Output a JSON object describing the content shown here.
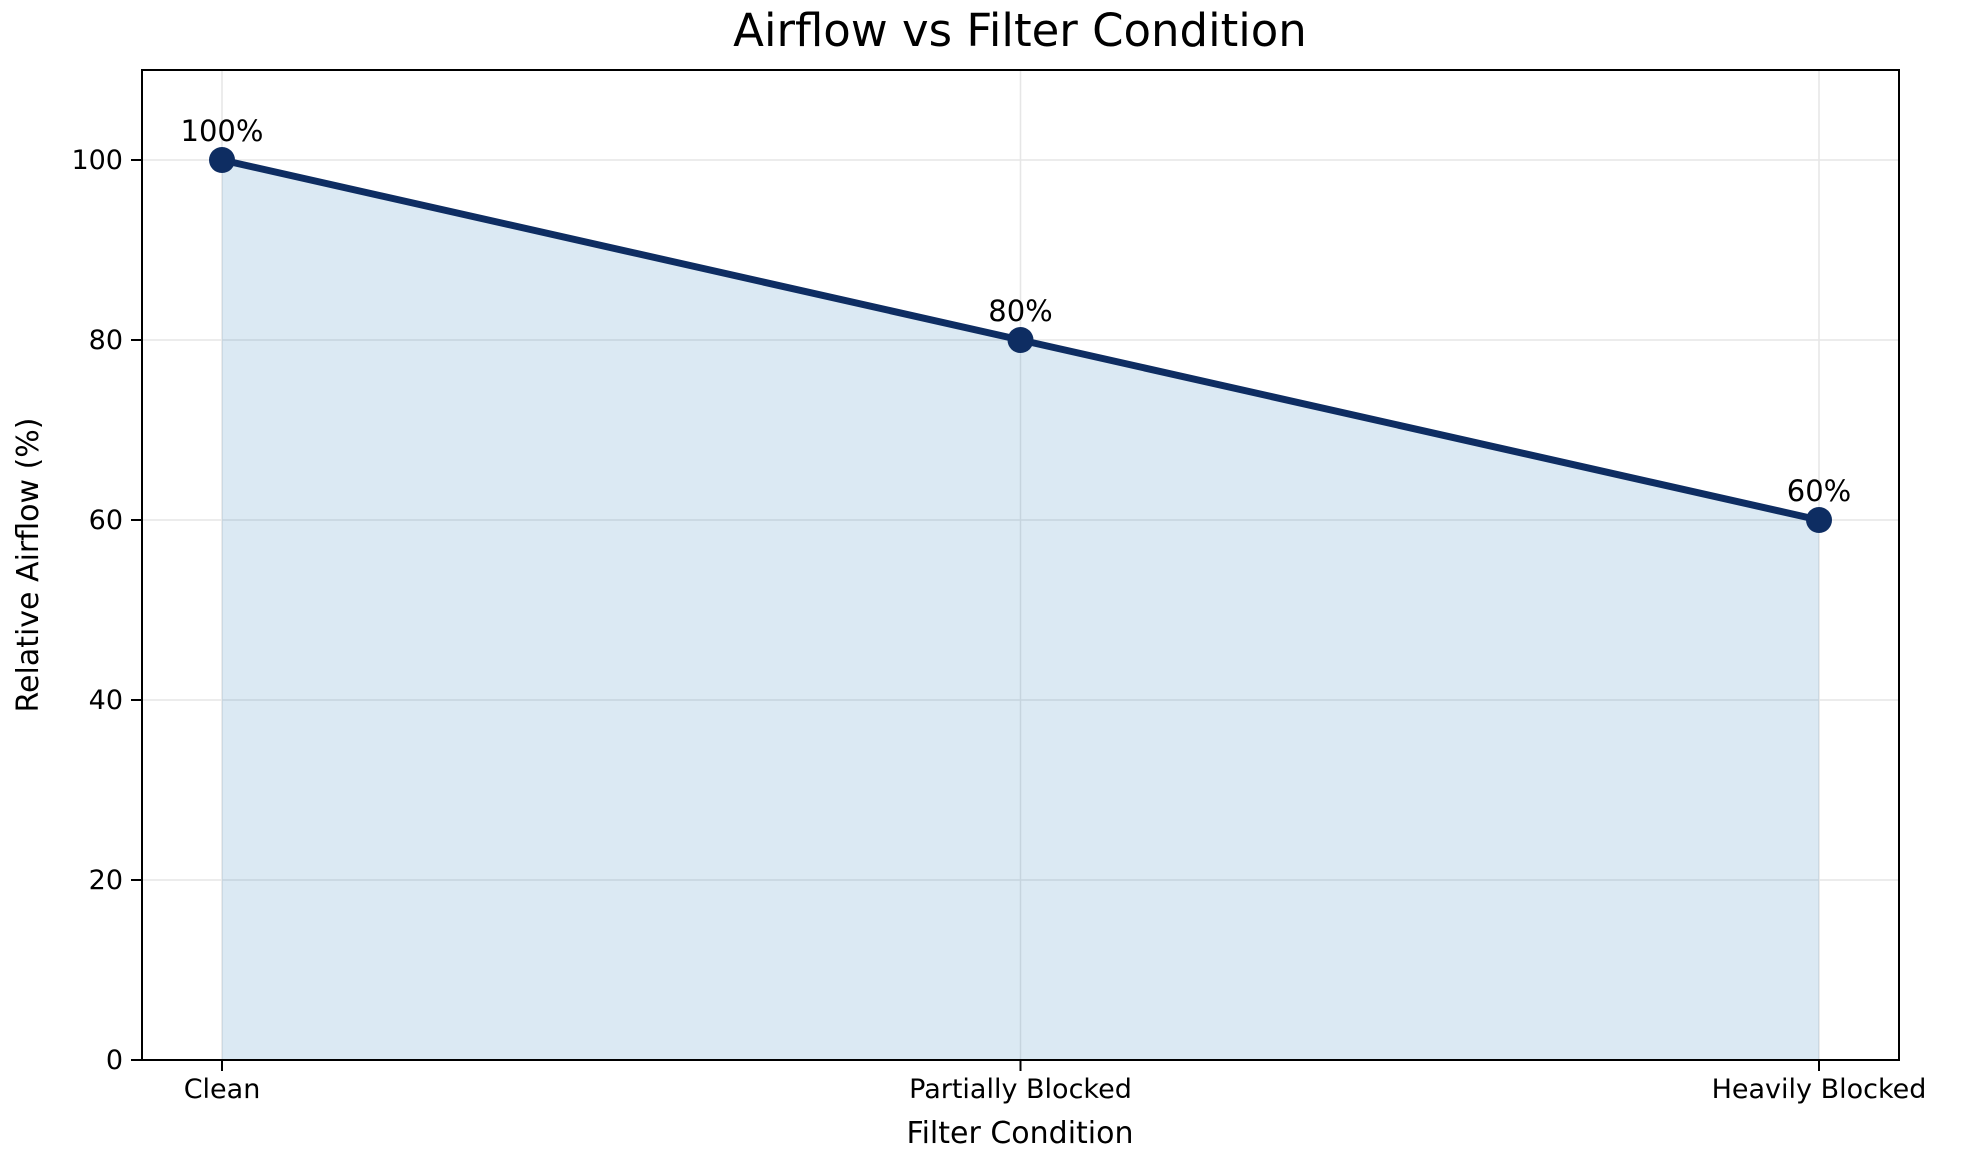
{
  "figure": {
    "background": "#ffffff"
  },
  "chart_data": {
    "type": "line",
    "title": "Airflow vs Filter Condition",
    "xlabel": "Filter Condition",
    "ylabel": "Relative Airflow (%)",
    "categories": [
      "Clean",
      "Partially Blocked",
      "Heavily Blocked"
    ],
    "series": [
      {
        "name": "Relative Airflow",
        "values": [
          100,
          80,
          60
        ]
      }
    ],
    "point_labels": [
      "100%",
      "80%",
      "60%"
    ],
    "yticks": [
      0,
      20,
      40,
      60,
      80,
      100
    ],
    "ylim": [
      0,
      110
    ],
    "grid": true,
    "legend_position": "none",
    "area_fill": true,
    "colors": {
      "line": "#0e2d62",
      "marker": "#0e2d62",
      "fill": "rgba(31,119,180,0.16)",
      "grid": "#e6e6e6",
      "spine": "#000000",
      "text": "#000000"
    }
  }
}
